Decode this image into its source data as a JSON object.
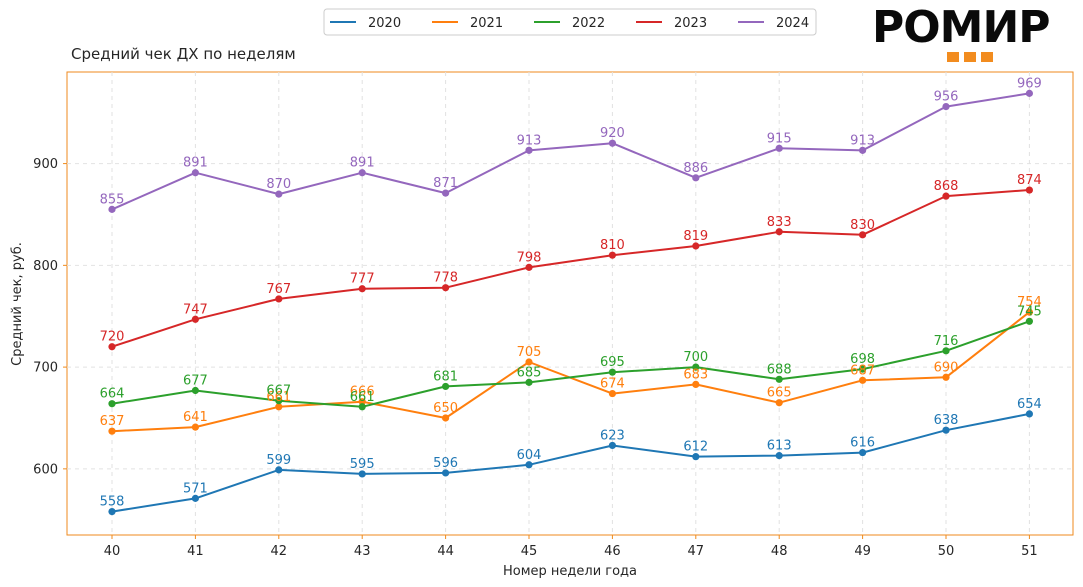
{
  "brand": {
    "logo_text": "РОМИР"
  },
  "chart_data": {
    "type": "line",
    "title": "Средний чек ДХ по неделям",
    "xlabel": "Номер недели года",
    "ylabel": "Средний чек, руб.",
    "x": [
      40,
      41,
      42,
      43,
      44,
      45,
      46,
      47,
      48,
      49,
      50,
      51
    ],
    "ylim": [
      535,
      990
    ],
    "yticks": [
      600,
      700,
      800,
      900
    ],
    "grid": true,
    "legend_position": "top-center",
    "series": [
      {
        "name": "2020",
        "color": "#1f77b4",
        "values": [
          558,
          571,
          599,
          595,
          596,
          604,
          623,
          612,
          613,
          616,
          638,
          654
        ]
      },
      {
        "name": "2021",
        "color": "#ff7f0e",
        "values": [
          637,
          641,
          661,
          666,
          650,
          705,
          674,
          683,
          665,
          687,
          690,
          754
        ]
      },
      {
        "name": "2022",
        "color": "#2ca02c",
        "values": [
          664,
          677,
          667,
          661,
          681,
          685,
          695,
          700,
          688,
          698,
          716,
          745
        ]
      },
      {
        "name": "2023",
        "color": "#d62728",
        "values": [
          720,
          747,
          767,
          777,
          778,
          798,
          810,
          819,
          833,
          830,
          868,
          874
        ]
      },
      {
        "name": "2024",
        "color": "#9467bd",
        "values": [
          855,
          891,
          870,
          891,
          871,
          913,
          920,
          886,
          915,
          913,
          956,
          969
        ]
      }
    ]
  }
}
